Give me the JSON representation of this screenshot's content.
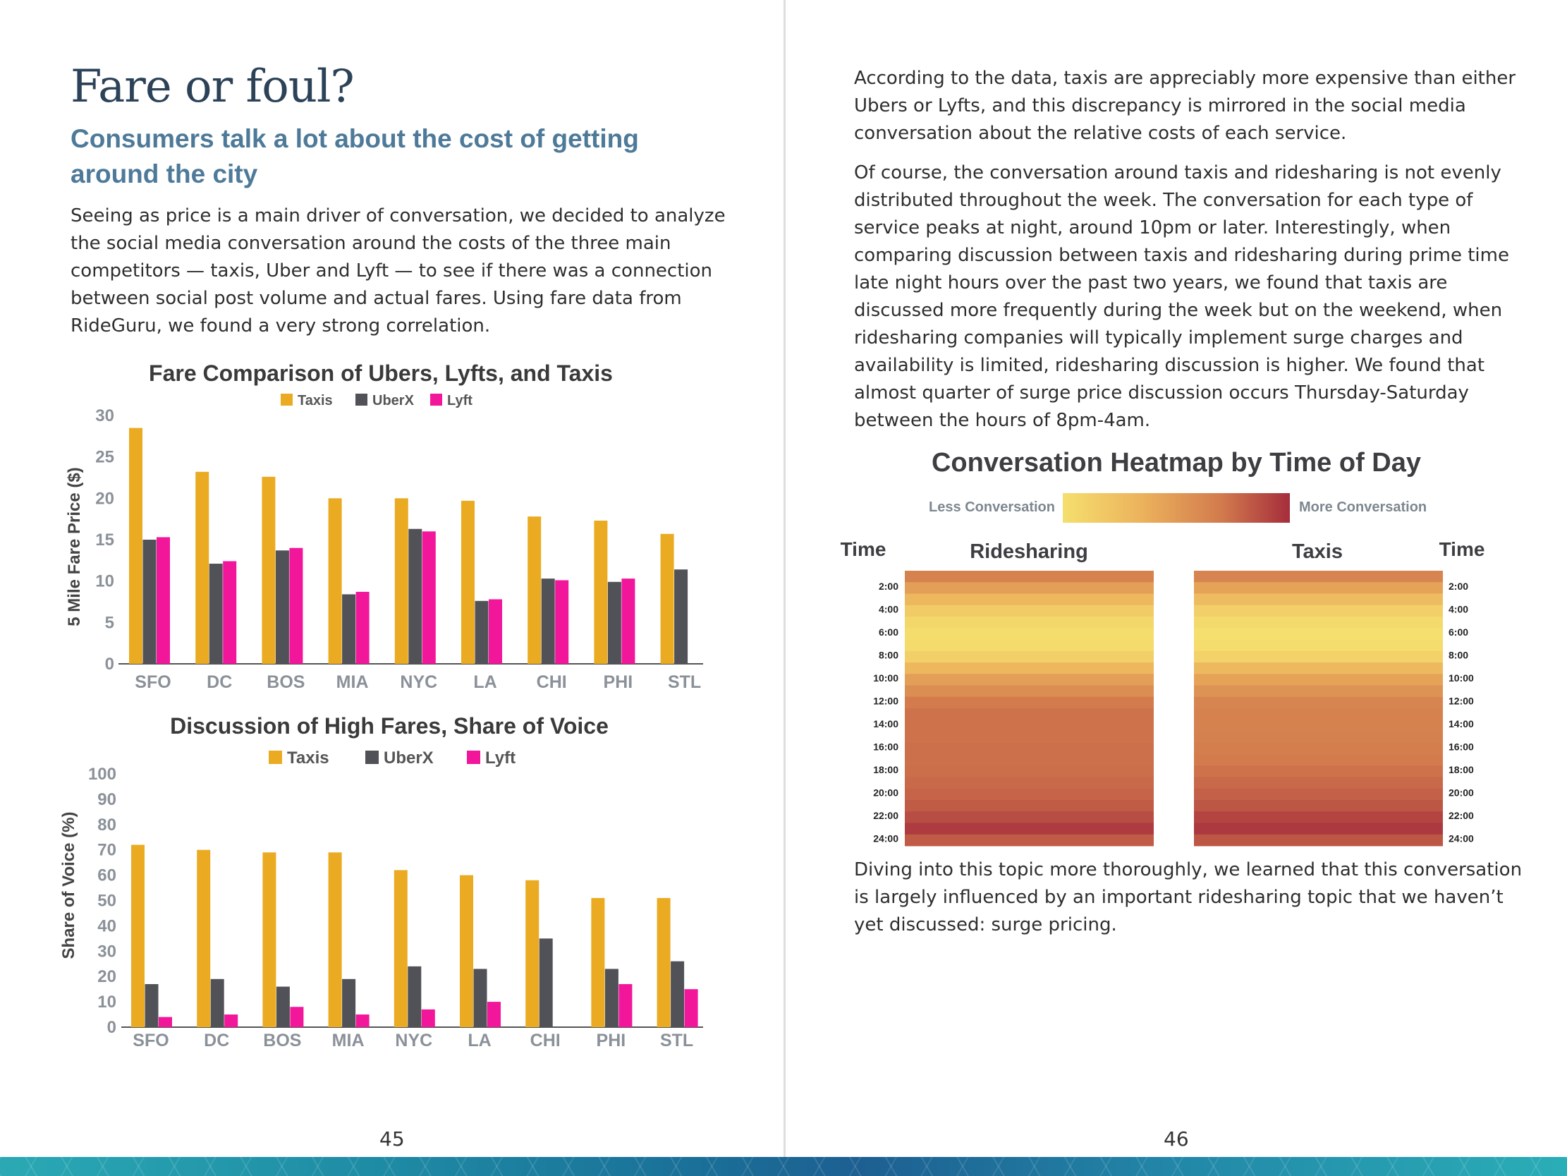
{
  "left_page": {
    "title": "Fare or foul?",
    "subtitle": "Consumers talk a lot about the cost of getting around the city",
    "intro": "Seeing as price is a main driver of conversation, we decided to analyze the social media conversation around the costs of the three main competitors — taxis, Uber and Lyft — to see if there was a connection between social post volume and actual fares. Using fare data from RideGuru, we found a very strong correlation.",
    "page_number": "45"
  },
  "right_page": {
    "paragraph_1": "According to the data, taxis are appreciably more expensive than either Ubers or Lyfts, and this discrepancy is mirrored in the social media conversation about the relative costs of each service.",
    "paragraph_2": "Of course, the conversation around taxis and ridesharing is not evenly distributed throughout the week. The conversation for each type of service peaks at night, around 10pm or later. Interestingly, when comparing discussion between taxis and ridesharing during prime time late night hours over the past two years, we found that taxis are discussed more frequently during the week but on the weekend, when ridesharing companies will typically implement surge charges and availability is limited, ridesharing discussion is higher. We found that almost quarter of surge price discussion occurs Thursday-Saturday between the hours of 8pm-4am.",
    "paragraph_3": "Diving into this topic more thoroughly, we learned that this conversation is largely influenced by an important ridesharing topic that we haven’t yet discussed: surge pricing.",
    "page_number": "46"
  },
  "colors": {
    "taxis": "#eaab22",
    "uberx": "#515158",
    "lyft": "#f2169b",
    "axis_text": "#8b9199",
    "chart_title": "#3a3a3a"
  },
  "chart_data": [
    {
      "type": "bar",
      "title": "Fare Comparison of Ubers, Lyfts, and Taxis",
      "ylabel": "5 Mile Fare Price ($)",
      "xlabel": "",
      "ylim": [
        0,
        30
      ],
      "yticks": [
        0,
        5,
        10,
        15,
        20,
        25,
        30
      ],
      "categories": [
        "SFO",
        "DC",
        "BOS",
        "MIA",
        "NYC",
        "LA",
        "CHI",
        "PHI",
        "STL"
      ],
      "series": [
        {
          "name": "Taxis",
          "values": [
            28.5,
            23.2,
            22.6,
            20.0,
            20.0,
            19.7,
            17.8,
            17.3,
            15.7
          ]
        },
        {
          "name": "UberX",
          "values": [
            15.0,
            12.1,
            13.7,
            8.4,
            16.3,
            7.6,
            10.3,
            9.9,
            11.4
          ]
        },
        {
          "name": "Lyft",
          "values": [
            15.3,
            12.4,
            14.0,
            8.7,
            16.0,
            7.8,
            10.1,
            10.3,
            null
          ]
        }
      ]
    },
    {
      "type": "bar",
      "title": "Discussion of High Fares, Share of Voice",
      "ylabel": "Share of Voice (%)",
      "xlabel": "",
      "ylim": [
        0,
        100
      ],
      "yticks": [
        0,
        10,
        20,
        30,
        40,
        50,
        60,
        70,
        80,
        90,
        100
      ],
      "categories": [
        "SFO",
        "DC",
        "BOS",
        "MIA",
        "NYC",
        "LA",
        "CHI",
        "PHI",
        "STL"
      ],
      "series": [
        {
          "name": "Taxis",
          "values": [
            72,
            70,
            69,
            69,
            62,
            60,
            58,
            51,
            51
          ]
        },
        {
          "name": "UberX",
          "values": [
            17,
            19,
            16,
            19,
            24,
            23,
            35,
            23,
            26
          ]
        },
        {
          "name": "Lyft",
          "values": [
            4,
            5,
            8,
            5,
            7,
            10,
            null,
            17,
            15
          ]
        }
      ]
    },
    {
      "type": "heatmap",
      "title": "Conversation Heatmap by Time of Day",
      "legend_low": "Less Conversation",
      "legend_high": "More Conversation",
      "scale_colors": [
        "#f5df6e",
        "#ecb25c",
        "#d27a4d",
        "#a52d3c"
      ],
      "columns": [
        "Ridesharing",
        "Taxis"
      ],
      "time_label": "Time",
      "time_ticks": [
        "2:00",
        "4:00",
        "6:00",
        "8:00",
        "10:00",
        "12:00",
        "14:00",
        "16:00",
        "18:00",
        "20:00",
        "22:00",
        "24:00"
      ],
      "ridesharing": [
        0.62,
        0.45,
        0.3,
        0.15,
        0.06,
        0.02,
        0.03,
        0.12,
        0.3,
        0.45,
        0.55,
        0.66,
        0.7,
        0.7,
        0.7,
        0.71,
        0.71,
        0.72,
        0.74,
        0.76,
        0.8,
        0.86,
        0.94,
        0.8
      ],
      "taxis": [
        0.6,
        0.42,
        0.26,
        0.12,
        0.04,
        0.0,
        0.02,
        0.1,
        0.28,
        0.42,
        0.52,
        0.6,
        0.62,
        0.62,
        0.63,
        0.64,
        0.66,
        0.7,
        0.74,
        0.78,
        0.82,
        0.9,
        0.95,
        0.82
      ]
    }
  ]
}
